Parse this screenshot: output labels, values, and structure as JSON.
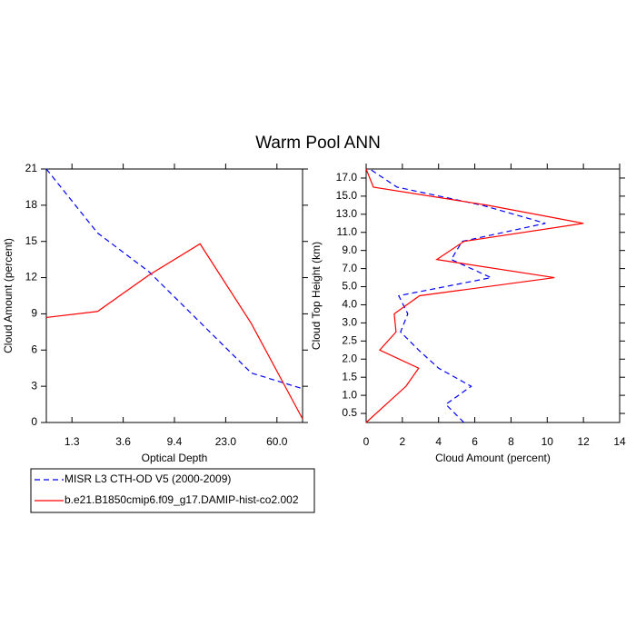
{
  "chart_data": [
    {
      "type": "line",
      "title": "Warm Pool ANN",
      "xlabel": "Optical Depth",
      "ylabel": "Cloud Amount (percent)",
      "x": [
        0,
        1,
        2,
        3,
        4,
        5
      ],
      "series": [
        {
          "name": "MISR L3 CTH-OD V5 (2000-2009)",
          "color": "#0000ff",
          "dash": true,
          "values": [
            21.0,
            15.7,
            12.5,
            8.3,
            4.1,
            2.8
          ]
        },
        {
          "name": "b.e21.B1850cmip6.f09_g17.DAMIP-hist-co2.002",
          "color": "#ff0000",
          "dash": false,
          "values": [
            8.7,
            9.2,
            12.2,
            14.8,
            8.2,
            0.3
          ]
        }
      ],
      "xlim": [
        0,
        5
      ],
      "xticks": [
        {
          "value": 0.5,
          "label": "1.3"
        },
        {
          "value": 1.5,
          "label": "3.6"
        },
        {
          "value": 2.5,
          "label": "9.4"
        },
        {
          "value": 3.5,
          "label": "23.0"
        },
        {
          "value": 4.5,
          "label": "60.0"
        }
      ],
      "ylim": [
        0,
        21
      ],
      "yticks": [
        0,
        3,
        6,
        9,
        12,
        15,
        18,
        21
      ]
    },
    {
      "type": "line",
      "orientation": "horizontal",
      "xlabel": "Cloud Amount (percent)",
      "ylabel": "Cloud Top Height (km)",
      "y": [
        0,
        1,
        2,
        3,
        4,
        5,
        6,
        7,
        8,
        9,
        10,
        11,
        12,
        13,
        14
      ],
      "series": [
        {
          "color": "#0000ff",
          "dash": true,
          "values": [
            5.4,
            4.4,
            5.8,
            4.0,
            2.9,
            1.9,
            2.3,
            1.8,
            6.9,
            4.7,
            5.3,
            9.9,
            6.4,
            1.7,
            0.2
          ]
        },
        {
          "color": "#ff0000",
          "dash": false,
          "values": [
            0.0,
            1.1,
            2.2,
            2.9,
            0.75,
            1.65,
            1.55,
            2.95,
            10.4,
            3.9,
            5.4,
            12.0,
            6.7,
            0.4,
            0.0
          ]
        }
      ],
      "xlim": [
        0,
        14
      ],
      "xticks": [
        0,
        2,
        4,
        6,
        8,
        10,
        12,
        14
      ],
      "ylim": [
        0,
        14
      ],
      "yticks": [
        {
          "value": 0.5,
          "label": "0.5"
        },
        {
          "value": 1.5,
          "label": "1.0"
        },
        {
          "value": 2.5,
          "label": "1.5"
        },
        {
          "value": 3.5,
          "label": "2.0"
        },
        {
          "value": 4.5,
          "label": "2.5"
        },
        {
          "value": 5.5,
          "label": "3.0"
        },
        {
          "value": 6.5,
          "label": "4.0"
        },
        {
          "value": 7.5,
          "label": "5.0"
        },
        {
          "value": 8.5,
          "label": "7.0"
        },
        {
          "value": 9.5,
          "label": "9.0"
        },
        {
          "value": 10.5,
          "label": "11.0"
        },
        {
          "value": 11.5,
          "label": "13.0"
        },
        {
          "value": 12.5,
          "label": "15.0"
        },
        {
          "value": 13.5,
          "label": "17.0"
        }
      ]
    }
  ]
}
